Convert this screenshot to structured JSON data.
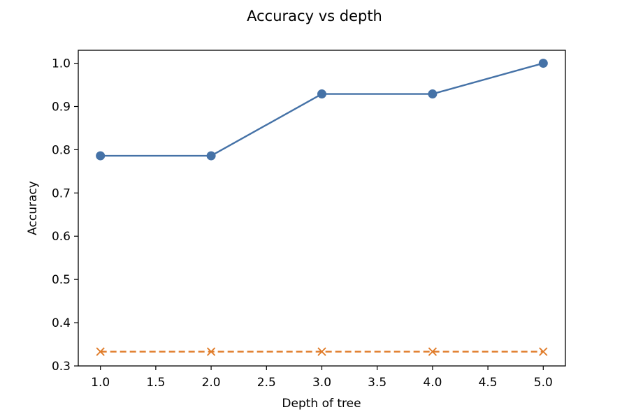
{
  "chart_data": {
    "type": "line",
    "title": "Accuracy vs depth",
    "xlabel": "Depth of tree",
    "ylabel": "Accuracy",
    "xlim": [
      0.8,
      5.2
    ],
    "ylim": [
      0.3,
      1.03
    ],
    "xticks": [
      1.0,
      1.5,
      2.0,
      2.5,
      3.0,
      3.5,
      4.0,
      4.5,
      5.0
    ],
    "xtick_labels": [
      "1.0",
      "1.5",
      "2.0",
      "2.5",
      "3.0",
      "3.5",
      "4.0",
      "4.5",
      "5.0"
    ],
    "yticks": [
      0.3,
      0.4,
      0.5,
      0.6,
      0.7,
      0.8,
      0.9,
      1.0
    ],
    "ytick_labels": [
      "0.3",
      "0.4",
      "0.5",
      "0.6",
      "0.7",
      "0.8",
      "0.9",
      "1.0"
    ],
    "grid": false,
    "legend": false,
    "x": [
      1,
      2,
      3,
      4,
      5
    ],
    "series": [
      {
        "values": [
          0.786,
          0.786,
          0.929,
          0.929,
          1.0
        ],
        "color": "#4572a7",
        "line_style": "solid",
        "marker": "circle"
      },
      {
        "values": [
          0.333,
          0.333,
          0.333,
          0.333,
          0.333
        ],
        "color": "#e07b28",
        "line_style": "dashed",
        "marker": "x"
      }
    ]
  }
}
